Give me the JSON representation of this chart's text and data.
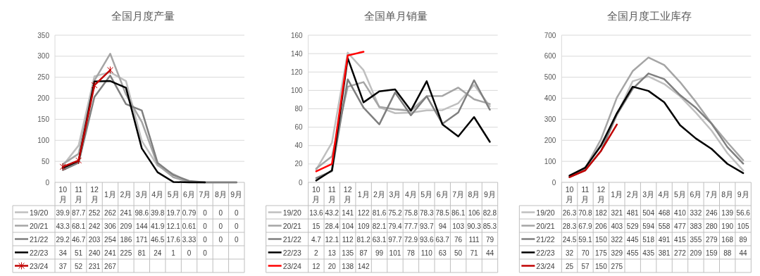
{
  "chart_data": [
    {
      "type": "line",
      "title": "全国月度产量",
      "categories": [
        "10月",
        "11月",
        "12月",
        "1月",
        "2月",
        "3月",
        "4月",
        "5月",
        "6月",
        "7月",
        "8月",
        "9月"
      ],
      "ylim": [
        0,
        350
      ],
      "yticks": [
        0,
        50,
        100,
        150,
        200,
        250,
        300,
        350
      ],
      "grid": "y",
      "legend": "bottom",
      "data_labels": true,
      "series": [
        {
          "name": "19/20",
          "color": "#bfbfbf",
          "values": [
            39.9,
            87.7,
            252,
            262,
            241,
            98.6,
            39.8,
            19.7,
            0.79,
            0,
            0,
            0
          ]
        },
        {
          "name": "20/21",
          "color": "#a5a5a5",
          "values": [
            43.3,
            68.1,
            242,
            306,
            209,
            144,
            41.9,
            12.1,
            0.61,
            0,
            0,
            0
          ]
        },
        {
          "name": "21/22",
          "color": "#7f7f7f",
          "values": [
            29.2,
            46.7,
            203,
            254,
            186,
            171,
            46.5,
            17.6,
            3.33,
            0,
            0,
            0
          ]
        },
        {
          "name": "22/23",
          "color": "#000000",
          "values": [
            34,
            51,
            240,
            241,
            225,
            81,
            24,
            1,
            0,
            0,
            null,
            null
          ]
        },
        {
          "name": "23/24",
          "color": "#c00000",
          "marker": "cross",
          "values": [
            37,
            52,
            231,
            267,
            null,
            null,
            null,
            null,
            null,
            null,
            null,
            null
          ]
        }
      ]
    },
    {
      "type": "line",
      "title": "全国单月销量",
      "categories": [
        "10月",
        "11月",
        "12月",
        "1月",
        "2月",
        "3月",
        "4月",
        "5月",
        "6月",
        "7月",
        "8月",
        "9月"
      ],
      "ylim": [
        0,
        160
      ],
      "yticks": [
        0,
        20,
        40,
        60,
        80,
        100,
        120,
        140,
        160
      ],
      "grid": "y",
      "legend": "bottom",
      "data_labels": true,
      "series": [
        {
          "name": "19/20",
          "color": "#bfbfbf",
          "values": [
            13.6,
            43.2,
            141,
            122,
            81.6,
            75.2,
            75.8,
            78.3,
            78.5,
            86.1,
            106,
            82.8
          ]
        },
        {
          "name": "20/21",
          "color": "#a5a5a5",
          "values": [
            15,
            28.4,
            104,
            109,
            82.1,
            79.4,
            77.7,
            93.7,
            94,
            103,
            90.3,
            85.3
          ]
        },
        {
          "name": "21/22",
          "color": "#7f7f7f",
          "values": [
            4.7,
            12.1,
            112,
            81.2,
            63.1,
            97.7,
            72.9,
            93.6,
            63.7,
            76,
            111,
            79
          ]
        },
        {
          "name": "22/23",
          "color": "#000000",
          "values": [
            2,
            13,
            135,
            87,
            99,
            101,
            78,
            110,
            63,
            50,
            71,
            44
          ]
        },
        {
          "name": "23/24",
          "color": "#ff0000",
          "values": [
            12,
            20,
            138,
            142,
            null,
            null,
            null,
            null,
            null,
            null,
            null,
            null
          ]
        }
      ]
    },
    {
      "type": "line",
      "title": "全国月度工业库存",
      "categories": [
        "10月",
        "11月",
        "12月",
        "1月",
        "2月",
        "3月",
        "4月",
        "5月",
        "6月",
        "7月",
        "8月",
        "9月"
      ],
      "ylim": [
        0,
        700
      ],
      "yticks": [
        0,
        100,
        200,
        300,
        400,
        500,
        600,
        700
      ],
      "grid": "y",
      "legend": "bottom",
      "data_labels": true,
      "series": [
        {
          "name": "19/20",
          "color": "#bfbfbf",
          "values": [
            26.3,
            70.8,
            182,
            321,
            481,
            504,
            468,
            410,
            332,
            246,
            139,
            56.6
          ]
        },
        {
          "name": "20/21",
          "color": "#a5a5a5",
          "values": [
            28.3,
            67.9,
            206,
            403,
            529,
            594,
            558,
            477,
            383,
            280,
            190,
            105
          ]
        },
        {
          "name": "21/22",
          "color": "#7f7f7f",
          "values": [
            24.5,
            59.1,
            150,
            322,
            445,
            518,
            491,
            415,
            355,
            279,
            168,
            89
          ]
        },
        {
          "name": "22/23",
          "color": "#000000",
          "values": [
            32,
            70,
            175,
            329,
            455,
            435,
            381,
            272,
            209,
            159,
            88,
            44
          ]
        },
        {
          "name": "23/24",
          "color": "#c00000",
          "values": [
            25,
            57,
            150,
            275,
            null,
            null,
            null,
            null,
            null,
            null,
            null,
            null
          ]
        }
      ]
    }
  ]
}
